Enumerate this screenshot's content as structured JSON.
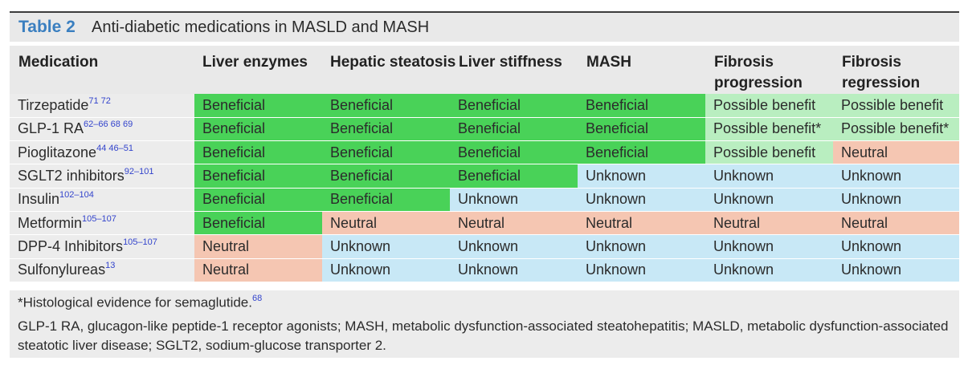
{
  "table": {
    "label": "Table 2",
    "title": "Anti-diabetic medications in MASLD and MASH",
    "columns": [
      "Medication",
      "Liver enzymes",
      "Hepatic steatosis",
      "Liver stiffness",
      "MASH",
      "Fibrosis progression",
      "Fibrosis regression"
    ],
    "rows": [
      {
        "medication": "Tirzepatide",
        "ref": "71 72",
        "values": [
          "Beneficial",
          "Beneficial",
          "Beneficial",
          "Beneficial",
          "Possible benefit",
          "Possible benefit"
        ]
      },
      {
        "medication": "GLP-1 RA",
        "ref": "62–66 68 69",
        "values": [
          "Beneficial",
          "Beneficial",
          "Beneficial",
          "Beneficial",
          "Possible benefit*",
          "Possible benefit*"
        ]
      },
      {
        "medication": "Pioglitazone",
        "ref": "44 46–51",
        "values": [
          "Beneficial",
          "Beneficial",
          "Beneficial",
          "Beneficial",
          "Possible benefit",
          "Neutral"
        ]
      },
      {
        "medication": "SGLT2 inhibitors",
        "ref": "92–101",
        "values": [
          "Beneficial",
          "Beneficial",
          "Beneficial",
          "Unknown",
          "Unknown",
          "Unknown"
        ]
      },
      {
        "medication": "Insulin",
        "ref": "102–104",
        "values": [
          "Beneficial",
          "Beneficial",
          "Unknown",
          "Unknown",
          "Unknown",
          "Unknown"
        ]
      },
      {
        "medication": "Metformin",
        "ref": "105–107",
        "values": [
          "Beneficial",
          "Neutral",
          "Neutral",
          "Neutral",
          "Neutral",
          "Neutral"
        ]
      },
      {
        "medication": "DPP-4 Inhibitors",
        "ref": "105–107",
        "values": [
          "Neutral",
          "Unknown",
          "Unknown",
          "Unknown",
          "Unknown",
          "Unknown"
        ]
      },
      {
        "medication": "Sulfonylureas",
        "ref": "13",
        "values": [
          "Neutral",
          "Unknown",
          "Unknown",
          "Unknown",
          "Unknown",
          "Unknown"
        ]
      }
    ],
    "status_colors": {
      "Beneficial": "#49d258",
      "Possible benefit": "#b9eec0",
      "Neutral": "#f5c6b2",
      "Unknown": "#c8e8f6"
    }
  },
  "footnote": {
    "asterisk_text": "*Histological evidence for semaglutide.",
    "asterisk_ref": "68",
    "abbreviations": "GLP-1 RA, glucagon-like peptide-1 receptor agonists; MASH, metabolic dysfunction-associated steatohepatitis; MASLD, metabolic dysfunction-associated steatotic liver disease; SGLT2, sodium-glucose transporter 2."
  }
}
